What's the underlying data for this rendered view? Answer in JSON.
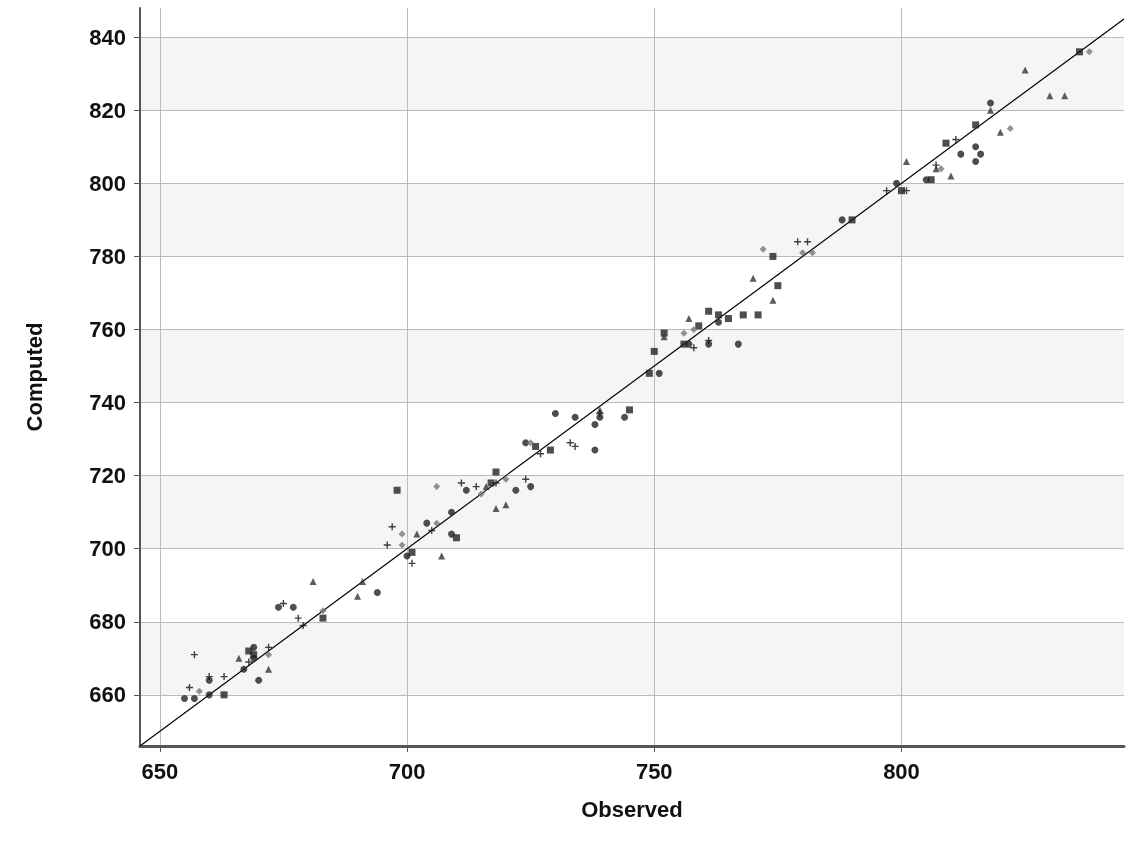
{
  "chart_data": {
    "type": "scatter",
    "xlabel": "Observed",
    "ylabel": "Computed",
    "xlim": [
      646,
      845
    ],
    "ylim": [
      646,
      848
    ],
    "xticks": [
      650,
      700,
      750,
      800
    ],
    "yticks": [
      660,
      680,
      700,
      720,
      740,
      760,
      780,
      800,
      820,
      840
    ],
    "grid": true,
    "series": [
      {
        "marker": "circle",
        "color": "#222222",
        "x": [
          670,
          669,
          667,
          677,
          700,
          704,
          709,
          722,
          725,
          730,
          744,
          751,
          757,
          761,
          763,
          767,
          788,
          799,
          805,
          815,
          815,
          816,
          818,
          660,
          657,
          724,
          739,
          655,
          660,
          669,
          674,
          694,
          712,
          709,
          734,
          738,
          738,
          812
        ],
        "values": [
          664,
          670,
          667,
          684,
          698,
          707,
          710,
          716,
          717,
          737,
          736,
          748,
          756,
          756,
          762,
          756,
          790,
          800,
          801,
          810,
          806,
          808,
          822,
          660,
          659,
          729,
          736,
          659,
          664,
          673,
          684,
          688,
          716,
          704,
          736,
          734,
          727,
          808
        ]
      },
      {
        "marker": "square",
        "color": "#222222",
        "x": [
          663,
          668,
          683,
          698,
          701,
          710,
          718,
          717,
          726,
          729,
          745,
          749,
          750,
          752,
          756,
          759,
          761,
          763,
          765,
          768,
          771,
          775,
          774,
          790,
          800,
          806,
          809,
          815,
          836,
          669
        ],
        "values": [
          660,
          672,
          681,
          716,
          699,
          703,
          721,
          718,
          728,
          727,
          738,
          748,
          754,
          759,
          756,
          761,
          765,
          764,
          763,
          764,
          764,
          772,
          780,
          790,
          798,
          801,
          811,
          816,
          836,
          671
        ]
      },
      {
        "marker": "triangle",
        "color": "#333333",
        "x": [
          672,
          681,
          690,
          691,
          702,
          707,
          716,
          718,
          720,
          739,
          752,
          757,
          770,
          774,
          801,
          807,
          810,
          818,
          820,
          825,
          830,
          833,
          666
        ],
        "values": [
          667,
          691,
          687,
          691,
          704,
          698,
          717,
          711,
          712,
          738,
          758,
          763,
          774,
          768,
          806,
          804,
          802,
          820,
          814,
          831,
          824,
          824,
          670
        ]
      },
      {
        "marker": "diamond",
        "color": "#777777",
        "x": [
          658,
          672,
          683,
          699,
          706,
          706,
          715,
          720,
          725,
          756,
          758,
          772,
          780,
          782,
          808,
          822,
          838,
          699
        ],
        "values": [
          661,
          671,
          683,
          704,
          707,
          717,
          715,
          719,
          729,
          759,
          760,
          782,
          781,
          781,
          804,
          815,
          836,
          701
        ]
      },
      {
        "marker": "cross",
        "color": "#111111",
        "x": [
          657,
          660,
          663,
          672,
          675,
          678,
          679,
          697,
          696,
          701,
          705,
          711,
          714,
          718,
          724,
          727,
          733,
          734,
          739,
          758,
          761,
          779,
          781,
          797,
          801,
          807,
          811,
          656,
          668
        ],
        "values": [
          671,
          665,
          665,
          673,
          685,
          681,
          679,
          706,
          701,
          696,
          705,
          718,
          717,
          718,
          719,
          726,
          729,
          728,
          737,
          755,
          757,
          784,
          784,
          798,
          798,
          805,
          812,
          662,
          669
        ]
      },
      {
        "type": "line",
        "marker": "none",
        "color": "#000000",
        "line_style": "solid",
        "x": [
          646,
          845
        ],
        "values": [
          646,
          845
        ]
      }
    ]
  }
}
